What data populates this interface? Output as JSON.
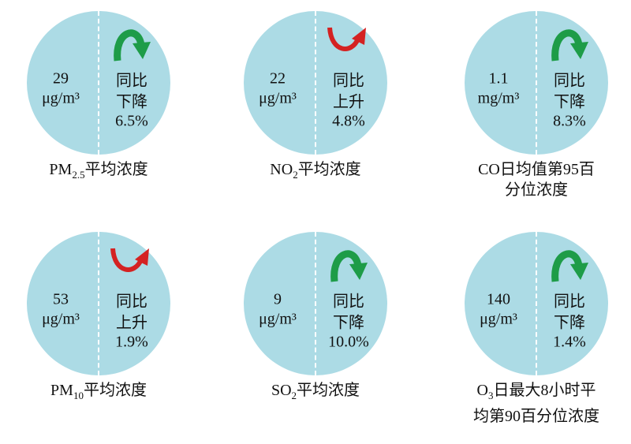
{
  "items": [
    {
      "value": "29",
      "unit": "μg/m³",
      "compare": "同比",
      "trend": "下降",
      "direction": "down",
      "change": "6.5%",
      "label": {
        "prefix": "PM",
        "sub": "2.5",
        "rest": [
          "平均浓度"
        ]
      }
    },
    {
      "value": "22",
      "unit": "μg/m³",
      "compare": "同比",
      "trend": "上升",
      "direction": "up",
      "change": "4.8%",
      "label": {
        "prefix": "NO",
        "sub": "2",
        "rest": [
          "平均浓度"
        ]
      }
    },
    {
      "value": "1.1",
      "unit": "mg/m³",
      "compare": "同比",
      "trend": "下降",
      "direction": "down",
      "change": "8.3%",
      "label": {
        "prefix": "CO",
        "rest": [
          "日均值第95百",
          "分位浓度"
        ]
      }
    },
    {
      "value": "53",
      "unit": "μg/m³",
      "compare": "同比",
      "trend": "上升",
      "direction": "up",
      "change": "1.9%",
      "label": {
        "prefix": "PM",
        "sub": "10",
        "rest": [
          "平均浓度"
        ]
      }
    },
    {
      "value": "9",
      "unit": "μg/m³",
      "compare": "同比",
      "trend": "下降",
      "direction": "down",
      "change": "10.0%",
      "label": {
        "prefix": "SO",
        "sub": "2",
        "rest": [
          "平均浓度"
        ]
      }
    },
    {
      "value": "140",
      "unit": "μg/m³",
      "compare": "同比",
      "trend": "下降",
      "direction": "down",
      "change": "1.4%",
      "label": {
        "prefix": "O",
        "sub": "3",
        "rest": [
          "日最大8小时平",
          "均第90百分位浓度"
        ]
      }
    }
  ]
}
